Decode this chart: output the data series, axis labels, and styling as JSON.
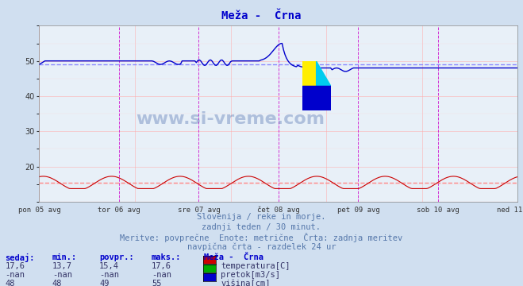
{
  "title": "Meža -  Črna",
  "bg_color": "#d0dff0",
  "plot_bg_color": "#e8f0f8",
  "grid_color_major": "#ffaaaa",
  "x_labels": [
    "pon 05 avg",
    "tor 06 avg",
    "sre 07 avg",
    "čet 08 avg",
    "pet 09 avg",
    "sob 10 avg",
    "ned 11 avg"
  ],
  "x_ticks_norm": [
    0.0,
    0.1667,
    0.3333,
    0.5,
    0.6667,
    0.8333,
    1.0
  ],
  "ylim": [
    10,
    60
  ],
  "yticks": [
    20,
    30,
    40,
    50
  ],
  "n_points": 336,
  "temp_avg": 15.4,
  "visina_avg": 49,
  "temp_color": "#cc0000",
  "pretok_color": "#00aa00",
  "visina_color": "#0000cc",
  "avg_line_temp_color": "#ff8888",
  "avg_line_visina_color": "#8888ff",
  "subtitle1": "Slovenija / reke in morje.",
  "subtitle2": "zadnji teden / 30 minut.",
  "subtitle3": "Meritve: povprečne  Enote: metrične  Črta: zadnja meritev",
  "subtitle4": "navpična črta - razdelek 24 ur",
  "watermark": "www.si-vreme.com",
  "legend_title": "Meža -  Črna",
  "legend_items": [
    {
      "label": "temperatura[C]",
      "color": "#cc0000"
    },
    {
      "label": "pretok[m3/s]",
      "color": "#00aa00"
    },
    {
      "label": "višina[cm]",
      "color": "#0000cc"
    }
  ],
  "table_headers": [
    "sedaj:",
    "min.:",
    "povpr.:",
    "maks.:"
  ],
  "table_data": [
    [
      "17,6",
      "13,7",
      "15,4",
      "17,6"
    ],
    [
      "-nan",
      "-nan",
      "-nan",
      "-nan"
    ],
    [
      "48",
      "48",
      "49",
      "55"
    ]
  ]
}
